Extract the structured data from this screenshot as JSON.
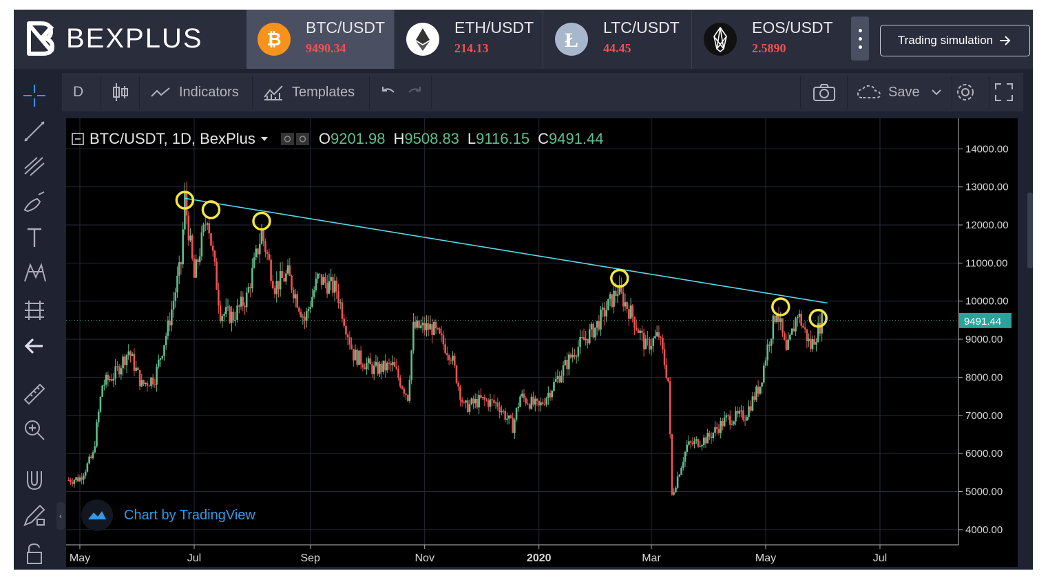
{
  "header": {
    "brand": "BEXPLUS",
    "pairs": [
      {
        "name": "BTC/USDT",
        "price": "9490.34",
        "icon": "bitcoin-icon",
        "color": "#f7931a"
      },
      {
        "name": "ETH/USDT",
        "price": "214.13",
        "icon": "ethereum-icon",
        "color": "#ffffff"
      },
      {
        "name": "LTC/USDT",
        "price": "44.45",
        "icon": "litecoin-icon",
        "color": "#a9b7cc"
      },
      {
        "name": "EOS/USDT",
        "price": "2.5890",
        "icon": "eos-icon",
        "color": "#111111"
      }
    ],
    "trading_simulation": "Trading simulation"
  },
  "toolbar": {
    "interval": "D",
    "indicators": "Indicators",
    "templates": "Templates",
    "save": "Save"
  },
  "legend": {
    "symbol": "BTC/USDT, 1D, BexPlus",
    "o_label": "O",
    "o": "9201.98",
    "h_label": "H",
    "h": "9508.83",
    "l_label": "L",
    "l": "9116.15",
    "c_label": "C",
    "c": "9491.44"
  },
  "attribution": "Chart by TradingView",
  "colors": {
    "up": "#5fbf8d",
    "down": "#ef5350",
    "trendline": "#5ad8ea",
    "highlight": "#f4e542",
    "price_tag": "#26a69a",
    "price_negative": "#ef5350"
  },
  "chart_data": {
    "type": "candlestick",
    "title": "BTC/USDT, 1D, BexPlus",
    "x_ticks": [
      "May",
      "Jul",
      "Sep",
      "Nov",
      "2020",
      "Mar",
      "May",
      "Jul"
    ],
    "x_tick_dates": [
      "2019-05-01",
      "2019-07-01",
      "2019-09-01",
      "2019-11-01",
      "2020-01-01",
      "2020-03-01",
      "2020-05-01",
      "2020-07-01"
    ],
    "y_ticks": [
      "14000.00",
      "13000.00",
      "12000.00",
      "11000.00",
      "10000.00",
      "9000.00",
      "8000.00",
      "7000.00",
      "6000.00",
      "5000.00",
      "4000.00"
    ],
    "ylim": [
      3600,
      14800
    ],
    "last_price": "9491.44",
    "grid": true,
    "series_close": [
      [
        "2019-04-25",
        5300
      ],
      [
        "2019-05-01",
        5350
      ],
      [
        "2019-05-08",
        5950
      ],
      [
        "2019-05-13",
        7800
      ],
      [
        "2019-05-20",
        8100
      ],
      [
        "2019-05-27",
        8700
      ],
      [
        "2019-06-03",
        7800
      ],
      [
        "2019-06-10",
        8000
      ],
      [
        "2019-06-17",
        9300
      ],
      [
        "2019-06-24",
        11000
      ],
      [
        "2019-06-26",
        12700
      ],
      [
        "2019-07-01",
        10600
      ],
      [
        "2019-07-08",
        12300
      ],
      [
        "2019-07-15",
        9700
      ],
      [
        "2019-07-22",
        9600
      ],
      [
        "2019-07-29",
        10100
      ],
      [
        "2019-08-06",
        11800
      ],
      [
        "2019-08-13",
        10400
      ],
      [
        "2019-08-20",
        10700
      ],
      [
        "2019-08-29",
        9500
      ],
      [
        "2019-09-05",
        10600
      ],
      [
        "2019-09-15",
        10300
      ],
      [
        "2019-09-24",
        8600
      ],
      [
        "2019-10-05",
        8200
      ],
      [
        "2019-10-15",
        8300
      ],
      [
        "2019-10-23",
        7500
      ],
      [
        "2019-10-26",
        9300
      ],
      [
        "2019-11-05",
        9300
      ],
      [
        "2019-11-15",
        8600
      ],
      [
        "2019-11-22",
        7200
      ],
      [
        "2019-12-01",
        7400
      ],
      [
        "2019-12-10",
        7300
      ],
      [
        "2019-12-18",
        6700
      ],
      [
        "2019-12-22",
        7500
      ],
      [
        "2020-01-01",
        7200
      ],
      [
        "2020-01-10",
        7900
      ],
      [
        "2020-01-20",
        8700
      ],
      [
        "2020-01-31",
        9300
      ],
      [
        "2020-02-12",
        10300
      ],
      [
        "2020-02-20",
        9600
      ],
      [
        "2020-02-27",
        8800
      ],
      [
        "2020-03-05",
        9100
      ],
      [
        "2020-03-10",
        7900
      ],
      [
        "2020-03-12",
        4900
      ],
      [
        "2020-03-20",
        6200
      ],
      [
        "2020-03-31",
        6400
      ],
      [
        "2020-04-10",
        6900
      ],
      [
        "2020-04-20",
        7000
      ],
      [
        "2020-04-28",
        7800
      ],
      [
        "2020-05-02",
        8800
      ],
      [
        "2020-05-07",
        9800
      ],
      [
        "2020-05-12",
        8600
      ],
      [
        "2020-05-18",
        9700
      ],
      [
        "2020-05-25",
        8800
      ],
      [
        "2020-05-31",
        9491
      ]
    ],
    "trendline": {
      "from": [
        "2019-06-26",
        12700
      ],
      "to": [
        "2020-06-03",
        9950
      ]
    },
    "highlighted_points": [
      [
        "2019-06-26",
        12650
      ],
      [
        "2019-07-10",
        12400
      ],
      [
        "2019-08-06",
        12100
      ],
      [
        "2020-02-13",
        10600
      ],
      [
        "2020-05-09",
        9850
      ],
      [
        "2020-05-29",
        9550
      ]
    ]
  }
}
